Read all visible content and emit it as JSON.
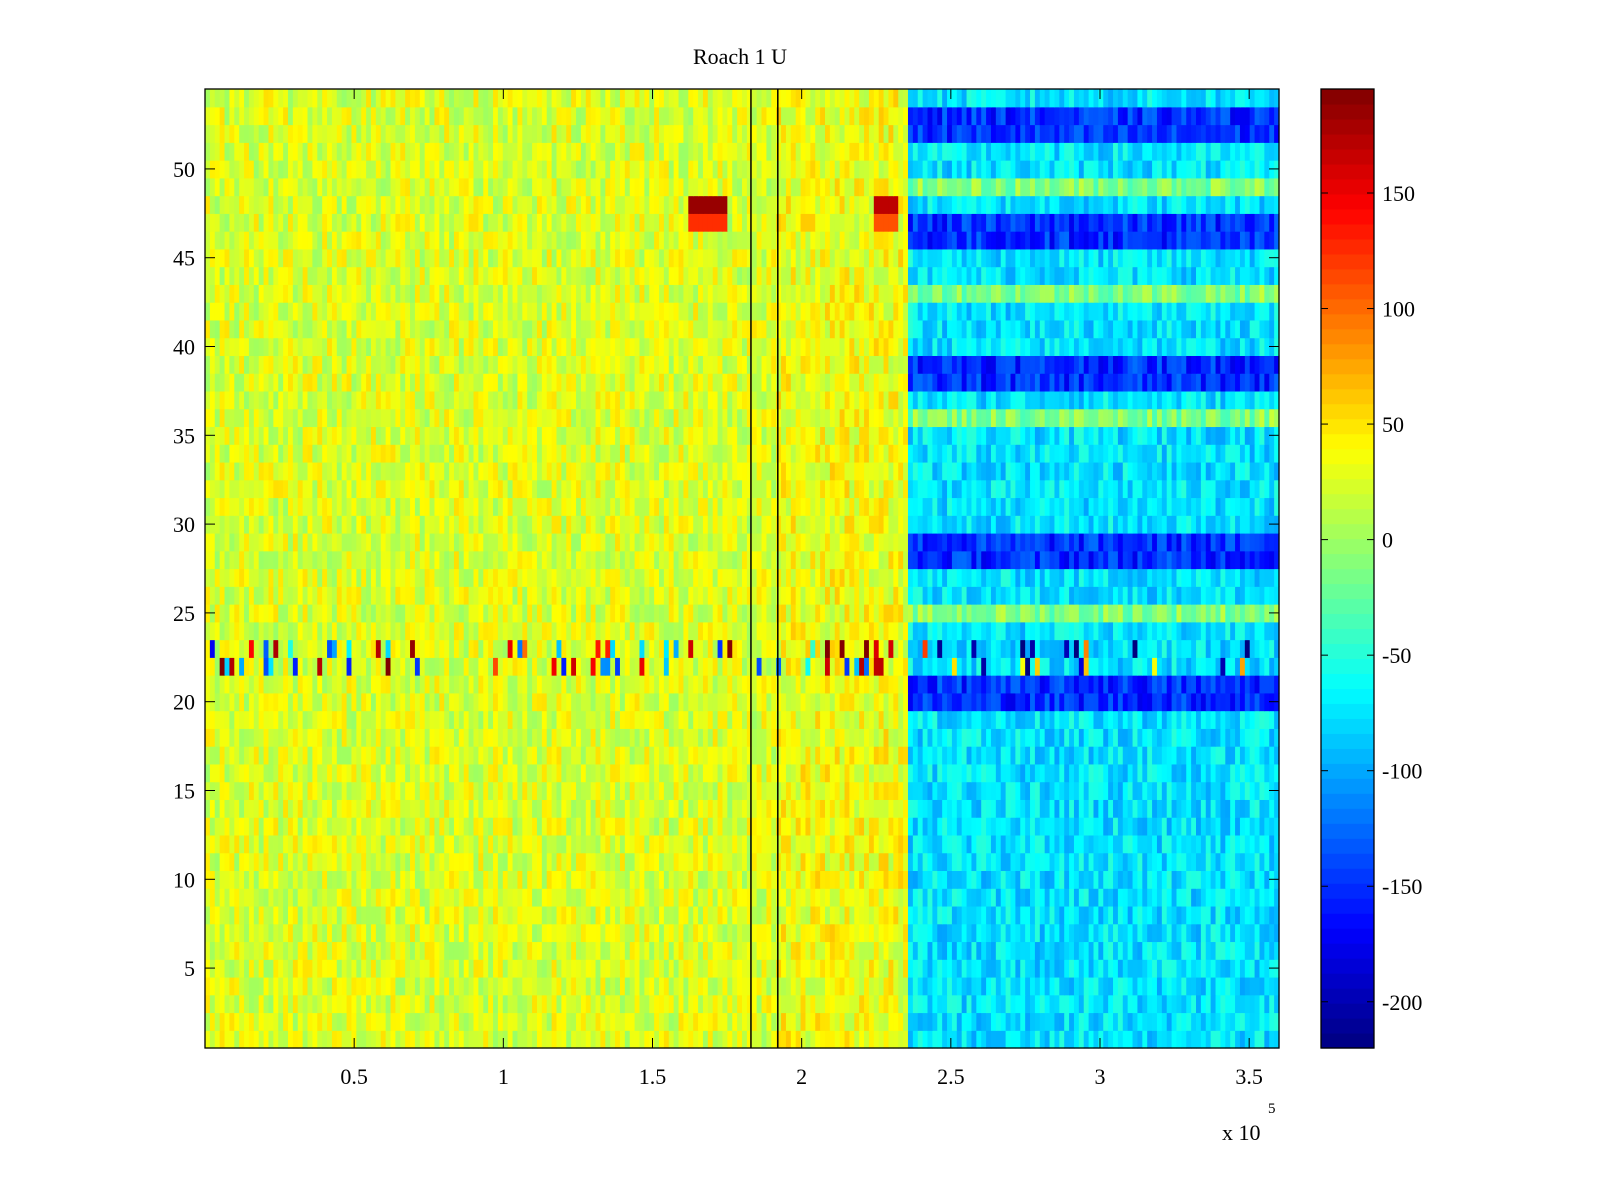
{
  "chart_data": {
    "type": "heatmap",
    "title": "Roach 1 U",
    "xlabel": "",
    "ylabel": "",
    "x_multiplier_label": {
      "base": "x 10",
      "exponent": "5"
    },
    "xlim": [
      0,
      3.6
    ],
    "ylim": [
      0.5,
      54.5
    ],
    "rows": 54,
    "x_ticks": [
      0.5,
      1,
      1.5,
      2,
      2.5,
      3,
      3.5
    ],
    "x_tick_labels": [
      "0.5",
      "1",
      "1.5",
      "2",
      "2.5",
      "3",
      "3.5"
    ],
    "y_ticks": [
      5,
      10,
      15,
      20,
      25,
      30,
      35,
      40,
      45,
      50
    ],
    "y_tick_labels": [
      "5",
      "10",
      "15",
      "20",
      "25",
      "30",
      "35",
      "40",
      "45",
      "50"
    ],
    "colorbar": {
      "colormap": "jet",
      "range": [
        -220,
        195
      ],
      "ticks": [
        150,
        100,
        50,
        0,
        -50,
        -100,
        -150,
        -200
      ],
      "tick_labels": [
        "150",
        "100",
        "50",
        "0",
        "-50",
        "-100",
        "-150",
        "-200"
      ]
    },
    "segments_description": [
      {
        "x_range": [
          0,
          1.83
        ],
        "typical_value": 25
      },
      {
        "x_range": [
          1.92,
          2.35
        ],
        "typical_value": 35
      },
      {
        "x_range": [
          2.35,
          3.6
        ],
        "typical_value": -75
      }
    ],
    "vertical_lines_x": [
      1.83,
      1.92
    ],
    "notable_rows": {
      "strong_negative_after_2_35": [
        53,
        52,
        47,
        46,
        39,
        38,
        29,
        28,
        21,
        20
      ],
      "mixed_spiky_rows": [
        22,
        23
      ],
      "hot_spots": [
        {
          "row": 48,
          "x_range": [
            1.62,
            1.75
          ],
          "value": 185
        },
        {
          "row": 48,
          "x_range": [
            2.25,
            2.33
          ],
          "value": 170
        }
      ]
    }
  },
  "colors": {
    "background": "#ffffff",
    "axes": "#000000"
  }
}
